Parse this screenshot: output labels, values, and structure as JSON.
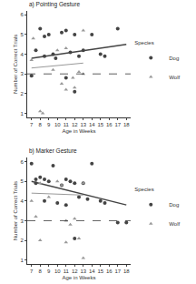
{
  "chart_data": [
    {
      "type": "scatter",
      "title": "a) Pointing Gesture",
      "x_label": "Age in Weeks",
      "y_label": "Number of Correct Trials",
      "legend_title": "Species",
      "legend": "right",
      "xlim": [
        6.5,
        18.5
      ],
      "xticks": [
        7,
        8,
        9,
        10,
        11,
        12,
        13,
        14,
        15,
        16,
        17,
        18
      ],
      "ylim": [
        0.8,
        6.2
      ],
      "yticks": [
        1,
        2,
        3,
        4,
        5,
        6
      ],
      "reference_line": {
        "value": 3,
        "line_style": "dashed"
      },
      "series": [
        {
          "name": "Dog",
          "color": "#444444",
          "marker": "circle",
          "line_style": "solid",
          "x": [
            7,
            7.5,
            8,
            8.5,
            8.5,
            9,
            9.5,
            9.8,
            10.5,
            11,
            11,
            11.5,
            12,
            12,
            12.5,
            13,
            14,
            15,
            15.5,
            17
          ],
          "values": [
            2.9,
            4.2,
            5.3,
            4.9,
            3.9,
            5,
            4,
            3.8,
            5.1,
            5.2,
            2.8,
            4.1,
            5,
            2.1,
            3.9,
            4.2,
            5,
            4,
            3.9,
            5.3
          ],
          "fit": {
            "x": [
              7,
              18
            ],
            "values": [
              3.8,
              4.5
            ]
          }
        },
        {
          "name": "Wolf",
          "color": "#999999",
          "marker": "triangle-up",
          "line_style": "solid",
          "x": [
            7,
            7.2,
            8,
            8.3,
            9.5,
            10,
            10.5,
            11,
            11,
            11.8,
            12,
            12.5,
            13,
            13
          ],
          "values": [
            3.7,
            4.8,
            1.1,
            1.0,
            3.2,
            4.2,
            2.5,
            2.2,
            4.3,
            2.8,
            2.3,
            3.1,
            5.2,
            3
          ],
          "fit": {
            "x": [
              7,
              13
            ],
            "values": [
              3.3,
              3.55
            ]
          }
        }
      ]
    },
    {
      "type": "scatter",
      "title": "b) Marker Gesture",
      "x_label": "Age in Weeks",
      "y_label": "Number of Correct Trials",
      "legend_title": "Species",
      "legend": "right",
      "xlim": [
        6.5,
        18.5
      ],
      "xticks": [
        7,
        8,
        9,
        10,
        11,
        12,
        13,
        14,
        15,
        16,
        17,
        18
      ],
      "ylim": [
        0.8,
        6.2
      ],
      "yticks": [
        1,
        2,
        3,
        4,
        5,
        6
      ],
      "reference_line": {
        "value": 3,
        "line_style": "dashed"
      },
      "series": [
        {
          "name": "Dog",
          "color": "#444444",
          "marker": "circle",
          "line_style": "solid",
          "x": [
            7,
            7.5,
            7.5,
            8,
            8.5,
            8.5,
            9,
            9.5,
            10,
            10.5,
            11,
            11,
            11.5,
            12,
            12,
            12.5,
            13,
            13.5,
            14,
            15,
            15.5,
            17,
            18
          ],
          "values": [
            5.9,
            5.1,
            4.9,
            5.2,
            5.1,
            4,
            5,
            5.8,
            3.9,
            4.8,
            5.1,
            3.8,
            5,
            4.9,
            2.1,
            4.2,
            4.9,
            4.1,
            5.9,
            4,
            3.9,
            2.9,
            2.9
          ],
          "fit": {
            "x": [
              7,
              18
            ],
            "values": [
              5.0,
              3.8
            ]
          }
        },
        {
          "name": "Wolf",
          "color": "#999999",
          "marker": "triangle-up",
          "line_style": "solid",
          "x": [
            7,
            7.5,
            8,
            8,
            9,
            10,
            10.5,
            11,
            11,
            11.5,
            12,
            12.5,
            13,
            13
          ],
          "values": [
            4,
            3.2,
            4.9,
            2,
            4.2,
            5,
            4.8,
            1.9,
            3,
            2.8,
            3.1,
            2.1,
            4.9,
            1.1
          ],
          "fit": {
            "x": [
              7,
              13
            ],
            "values": [
              4.4,
              4.3
            ]
          }
        }
      ]
    }
  ]
}
